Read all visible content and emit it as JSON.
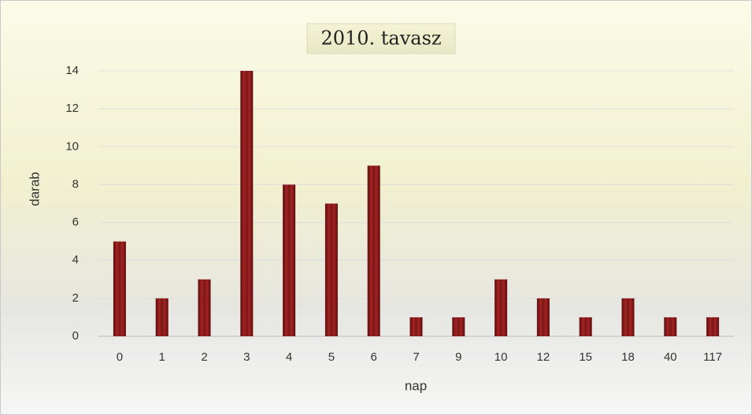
{
  "chart_data": {
    "type": "bar",
    "title": "2010. tavasz",
    "x_label": "nap",
    "y_label": "darab",
    "categories": [
      "0",
      "1",
      "2",
      "3",
      "4",
      "5",
      "6",
      "7",
      "9",
      "10",
      "12",
      "15",
      "18",
      "40",
      "117"
    ],
    "values": [
      5,
      2,
      3,
      14,
      8,
      7,
      9,
      1,
      1,
      3,
      2,
      1,
      2,
      1,
      1
    ],
    "color": "#a32424",
    "ylim": [
      0,
      14
    ],
    "yticks": [
      0,
      2,
      4,
      6,
      8,
      10,
      12,
      14
    ],
    "grid": true
  }
}
